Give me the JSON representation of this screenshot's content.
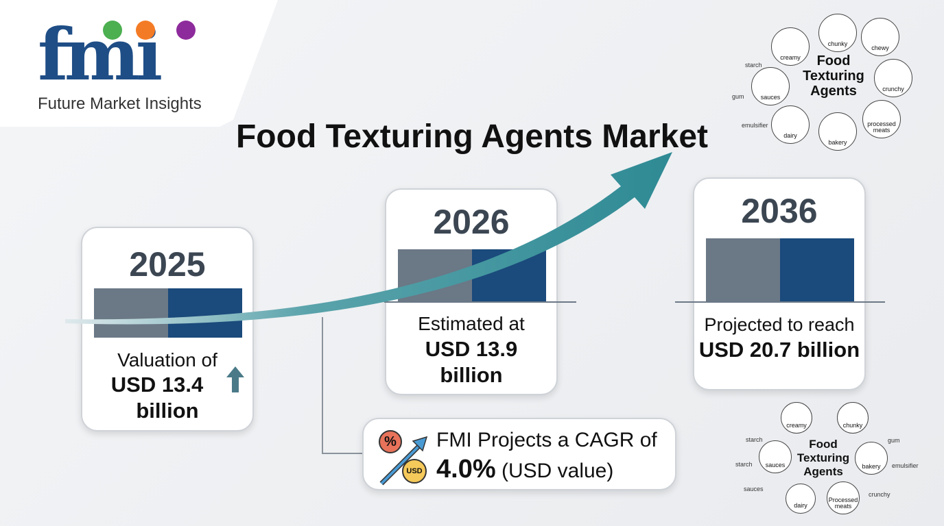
{
  "logo": {
    "text": "fmi",
    "subtitle": "Future Market Insights",
    "dot_colors": [
      "#4caf50",
      "#f47b25",
      "#8e2b9c"
    ]
  },
  "title": "Food Texturing Agents Market",
  "cards": [
    {
      "year": "2025",
      "line1": "Valuation of",
      "line2": "USD 13.4",
      "line3": "billion",
      "value_usd_billion": 13.4
    },
    {
      "year": "2026",
      "line1": "Estimated at",
      "line2": "USD 13.9",
      "line3": "billion",
      "value_usd_billion": 13.9
    },
    {
      "year": "2036",
      "line1": "Projected to reach",
      "line2": "USD 20.7 billion",
      "value_usd_billion": 20.7
    }
  ],
  "cagr": {
    "line1": "FMI Projects a CAGR of",
    "value": "4.0%",
    "suffix": "(USD value)",
    "icon_percent": "%",
    "icon_usd": "USD"
  },
  "cluster_top": {
    "title": [
      "Food",
      "Texturing",
      "Agents"
    ],
    "items": [
      "creamy",
      "chunky",
      "chewy",
      "crunchy",
      "processed meats",
      "bakery",
      "dairy",
      "sauces"
    ],
    "side": [
      "starch",
      "gum",
      "emulsifier"
    ]
  },
  "cluster_bottom": {
    "title": [
      "Food",
      "Texturing",
      "Agents"
    ],
    "items": [
      "creamy",
      "chunky",
      "bakery",
      "Processed meats",
      "dairy",
      "sauces"
    ],
    "side": [
      "starch",
      "starch",
      "sauces",
      "gum",
      "emulsifier",
      "crunchy"
    ]
  },
  "colors": {
    "navy": "#1b4a7c",
    "gray": "#6b7886",
    "arrow": "#2e8a94"
  }
}
